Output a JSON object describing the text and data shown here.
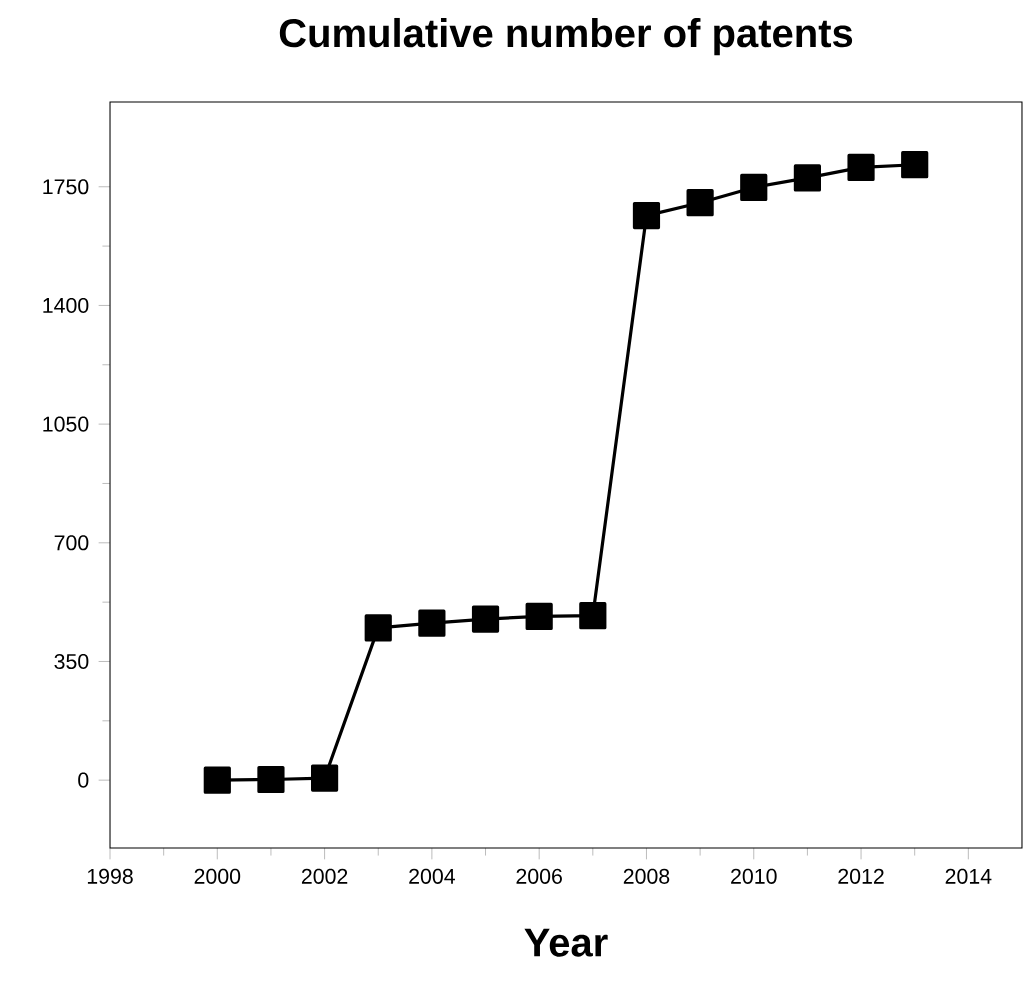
{
  "chart_data": {
    "type": "line",
    "title": "Cumulative number of patents",
    "xlabel": "Year",
    "x": [
      2000,
      2001,
      2002,
      2003,
      2004,
      2005,
      2006,
      2007,
      2008,
      2009,
      2010,
      2011,
      2012,
      2013
    ],
    "values": [
      0,
      2,
      6,
      449,
      463,
      475,
      483,
      485,
      1665,
      1703,
      1748,
      1776,
      1807,
      1815
    ],
    "color": "#000000",
    "marker": "square",
    "line_style": "solid",
    "grid": false,
    "xlim": [
      1998,
      2015
    ],
    "xticks": [
      1998,
      2000,
      2002,
      2004,
      2006,
      2008,
      2010,
      2012,
      2014
    ],
    "ylim": [
      -200,
      2000
    ],
    "yticks": [
      0,
      350,
      700,
      1050,
      1400,
      1750
    ]
  }
}
